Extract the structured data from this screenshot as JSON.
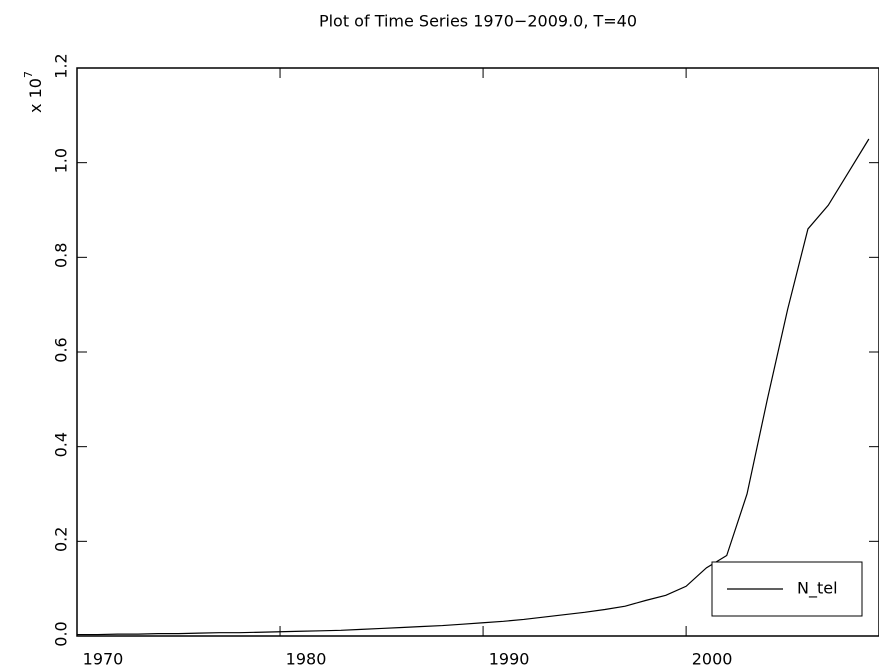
{
  "chart_data": {
    "type": "line",
    "title": "Plot of Time Series 1970−2009.0, T=40",
    "y_scale_label": "x 10",
    "y_scale_exponent": "7",
    "x": [
      1970,
      1971,
      1972,
      1973,
      1974,
      1975,
      1976,
      1977,
      1978,
      1979,
      1980,
      1981,
      1982,
      1983,
      1984,
      1985,
      1986,
      1987,
      1988,
      1989,
      1990,
      1991,
      1992,
      1993,
      1994,
      1995,
      1996,
      1997,
      1998,
      1999,
      2000,
      2001,
      2002,
      2003,
      2004,
      2005,
      2006,
      2007,
      2008,
      2009
    ],
    "series": [
      {
        "name": "N_tel",
        "color": "#000000",
        "values": [
          0.003,
          0.003,
          0.004,
          0.004,
          0.005,
          0.005,
          0.006,
          0.007,
          0.007,
          0.008,
          0.009,
          0.01,
          0.011,
          0.012,
          0.014,
          0.016,
          0.018,
          0.02,
          0.022,
          0.025,
          0.028,
          0.031,
          0.035,
          0.04,
          0.045,
          0.05,
          0.056,
          0.063,
          0.075,
          0.086,
          0.105,
          0.144,
          0.17,
          0.3,
          0.5,
          0.69,
          0.86,
          0.91,
          0.98,
          1.05
        ]
      }
    ],
    "xlim": [
      1970,
      2009.5
    ],
    "ylim": [
      0,
      1.2
    ],
    "xticks": [
      1970,
      1980,
      1990,
      2000
    ],
    "yticks": [
      {
        "value": 0,
        "label": "0.0"
      },
      0.2,
      0.4,
      0.6,
      0.8,
      {
        "value": 1,
        "label": "1.0"
      },
      1.2
    ],
    "legend": "lower right",
    "grid": false
  }
}
